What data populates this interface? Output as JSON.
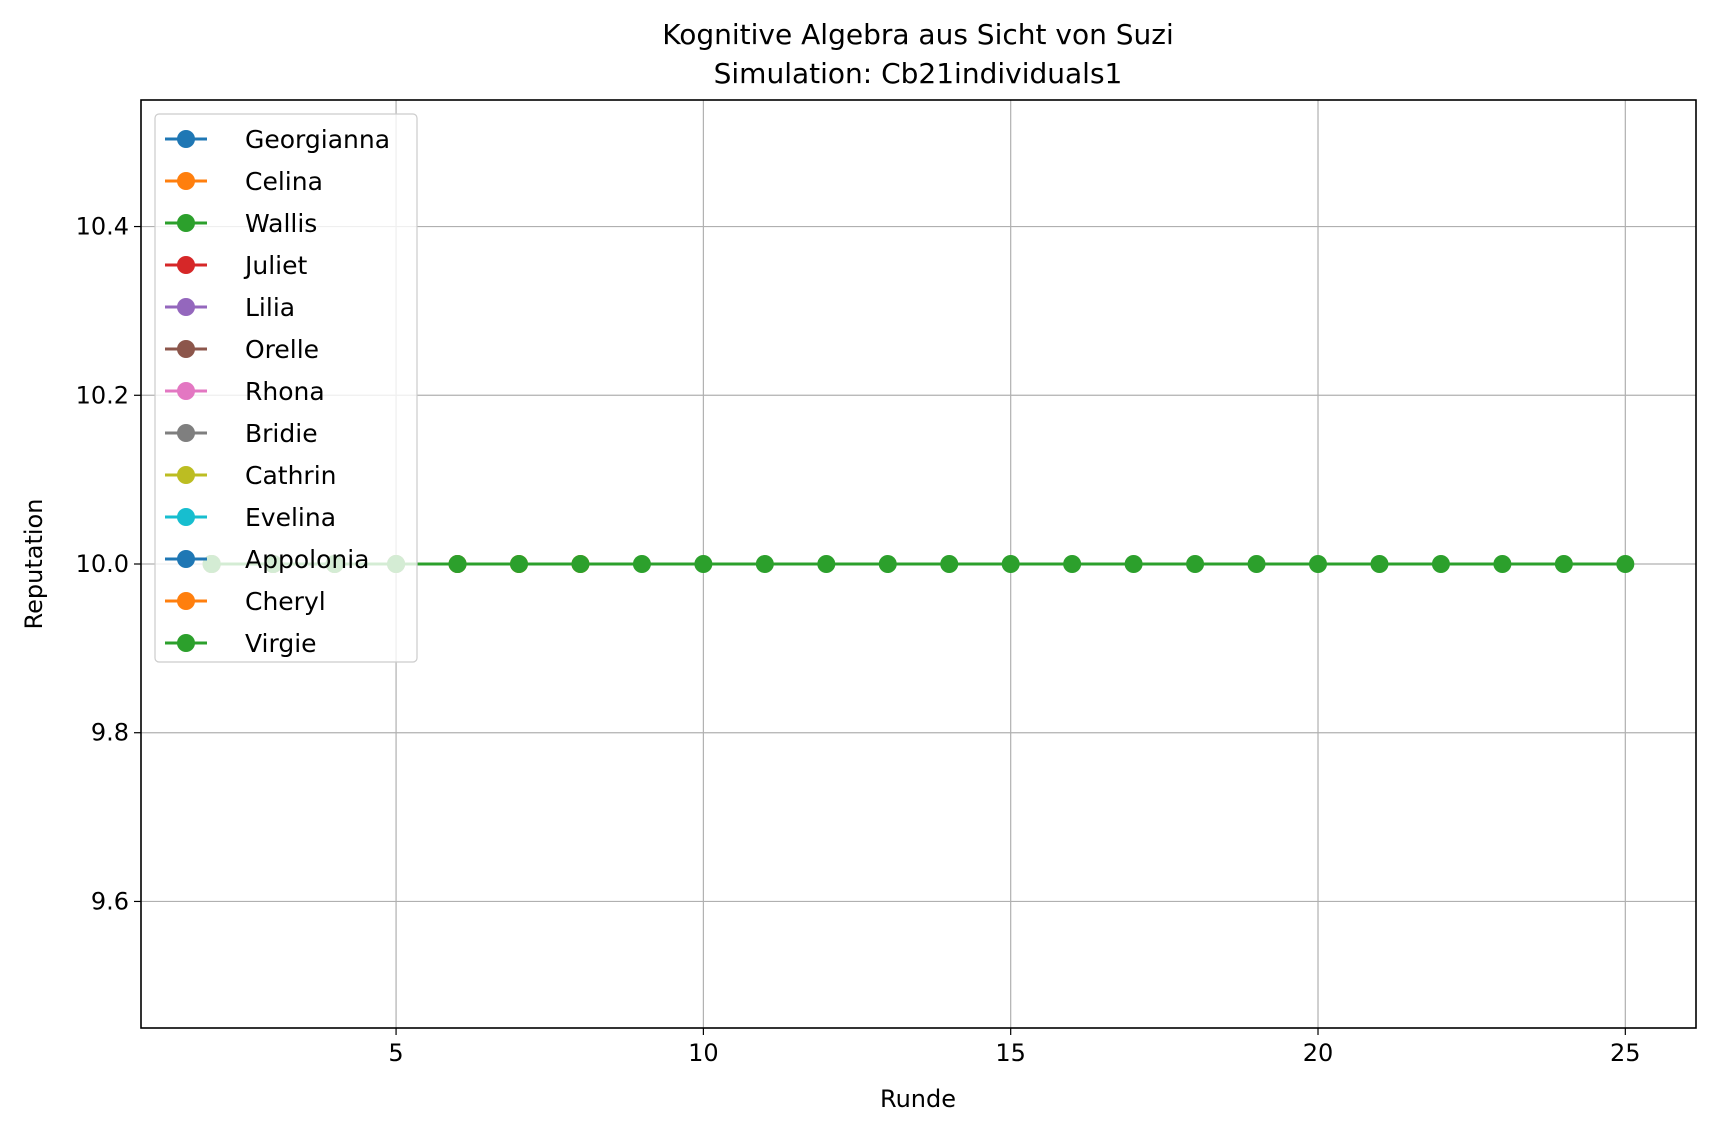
{
  "chart_data": {
    "type": "line",
    "title": "Kognitive Algebra aus Sicht von Suzi",
    "subtitle": "Simulation: Cb21individuals1",
    "xlabel": "Runde",
    "ylabel": "Reputation",
    "xlim": [
      0.85,
      26.15
    ],
    "ylim": [
      9.45,
      10.55
    ],
    "x_ticks": [
      5,
      10,
      15,
      20,
      25
    ],
    "y_ticks": [
      9.6,
      9.8,
      10.0,
      10.2,
      10.4
    ],
    "grid": true,
    "legend_position": "upper-left",
    "series": [
      {
        "name": "Georgianna",
        "color": "#1f77b4",
        "x": [
          2
        ],
        "y": [
          10.0
        ]
      },
      {
        "name": "Celina",
        "color": "#ff7f0e",
        "x": [
          2,
          3
        ],
        "y": [
          10.0,
          10.0
        ]
      },
      {
        "name": "Wallis",
        "color": "#2ca02c",
        "x": [
          2,
          3
        ],
        "y": [
          10.0,
          10.0
        ]
      },
      {
        "name": "Juliet",
        "color": "#d62728",
        "x": [
          2,
          3
        ],
        "y": [
          10.0,
          10.0
        ]
      },
      {
        "name": "Lilia",
        "color": "#9467bd",
        "x": [
          2,
          3
        ],
        "y": [
          10.0,
          10.0
        ]
      },
      {
        "name": "Orelle",
        "color": "#8c564b",
        "x": [
          2,
          3
        ],
        "y": [
          10.0,
          10.0
        ]
      },
      {
        "name": "Rhona",
        "color": "#e377c2",
        "x": [
          2,
          3
        ],
        "y": [
          10.0,
          10.0
        ]
      },
      {
        "name": "Bridie",
        "color": "#7f7f7f",
        "x": [
          2,
          3,
          4
        ],
        "y": [
          10.0,
          10.0,
          10.0
        ]
      },
      {
        "name": "Cathrin",
        "color": "#bcbd22",
        "x": [
          2,
          3,
          4
        ],
        "y": [
          10.0,
          10.0,
          10.0
        ]
      },
      {
        "name": "Evelina",
        "color": "#17becf",
        "x": [
          2,
          3,
          4,
          5
        ],
        "y": [
          10.0,
          10.0,
          10.0,
          10.0
        ]
      },
      {
        "name": "Appolonia",
        "color": "#1f77b4",
        "x": [
          2,
          3,
          4,
          5,
          6
        ],
        "y": [
          10.0,
          10.0,
          10.0,
          10.0,
          10.0
        ]
      },
      {
        "name": "Cheryl",
        "color": "#ff7f0e",
        "x": [
          2,
          3,
          4,
          5,
          6,
          7,
          8
        ],
        "y": [
          10.0,
          10.0,
          10.0,
          10.0,
          10.0,
          10.0,
          10.0
        ]
      },
      {
        "name": "Virgie",
        "color": "#2ca02c",
        "x": [
          2,
          3,
          4,
          5,
          6,
          7,
          8,
          9,
          10,
          11,
          12,
          13,
          14,
          15,
          16,
          17,
          18,
          19,
          20,
          21,
          22,
          23,
          24,
          25
        ],
        "y": [
          10.0,
          10.0,
          10.0,
          10.0,
          10.0,
          10.0,
          10.0,
          10.0,
          10.0,
          10.0,
          10.0,
          10.0,
          10.0,
          10.0,
          10.0,
          10.0,
          10.0,
          10.0,
          10.0,
          10.0,
          10.0,
          10.0,
          10.0,
          10.0
        ]
      }
    ]
  }
}
